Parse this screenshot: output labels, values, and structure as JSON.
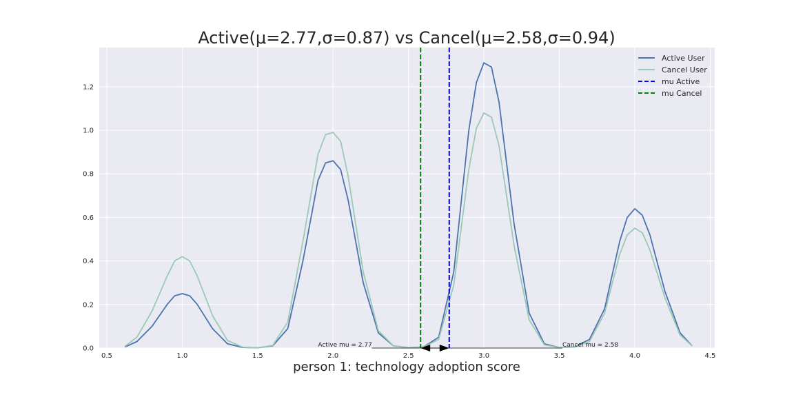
{
  "chart_data": {
    "type": "line",
    "title": "Active(μ=2.77,σ=0.87) vs Cancel(μ=2.58,σ=0.94)",
    "xlabel": "person 1: technology adoption score",
    "ylabel": "",
    "xlim": [
      0.45,
      4.53
    ],
    "ylim": [
      0,
      1.38
    ],
    "xticks": [
      0.5,
      1.0,
      1.5,
      2.0,
      2.5,
      3.0,
      3.5,
      4.0,
      4.5
    ],
    "xtick_labels": [
      "0.5",
      "1.0",
      "1.5",
      "2.0",
      "2.5",
      "3.0",
      "3.5",
      "4.0",
      "4.5"
    ],
    "yticks": [
      0.0,
      0.2,
      0.4,
      0.6,
      0.8,
      1.0,
      1.2
    ],
    "ytick_labels": [
      "0.0",
      "0.2",
      "0.4",
      "0.6",
      "0.8",
      "1.0",
      "1.2"
    ],
    "grid": true,
    "legend_position": "top-right",
    "series": [
      {
        "name": "Active User",
        "color": "#4c72b0",
        "x": [
          0.62,
          0.7,
          0.8,
          0.9,
          0.95,
          1.0,
          1.05,
          1.1,
          1.2,
          1.3,
          1.4,
          1.5,
          1.6,
          1.7,
          1.8,
          1.9,
          1.95,
          2.0,
          2.05,
          2.1,
          2.2,
          2.3,
          2.4,
          2.5,
          2.6,
          2.7,
          2.8,
          2.9,
          2.95,
          3.0,
          3.05,
          3.1,
          3.2,
          3.3,
          3.4,
          3.5,
          3.6,
          3.7,
          3.8,
          3.9,
          3.95,
          4.0,
          4.05,
          4.1,
          4.2,
          4.3,
          4.38
        ],
        "y": [
          0.005,
          0.03,
          0.1,
          0.2,
          0.24,
          0.25,
          0.24,
          0.2,
          0.09,
          0.02,
          0.003,
          0.001,
          0.01,
          0.09,
          0.4,
          0.77,
          0.85,
          0.86,
          0.82,
          0.68,
          0.3,
          0.07,
          0.01,
          0.002,
          0.005,
          0.05,
          0.35,
          1.0,
          1.22,
          1.31,
          1.29,
          1.13,
          0.57,
          0.16,
          0.02,
          0.002,
          0.005,
          0.04,
          0.18,
          0.49,
          0.6,
          0.64,
          0.61,
          0.52,
          0.26,
          0.07,
          0.01
        ]
      },
      {
        "name": "Cancel User",
        "color": "#9ac9b4",
        "x": [
          0.62,
          0.7,
          0.8,
          0.9,
          0.95,
          1.0,
          1.05,
          1.1,
          1.2,
          1.3,
          1.4,
          1.5,
          1.6,
          1.7,
          1.8,
          1.9,
          1.95,
          2.0,
          2.05,
          2.1,
          2.2,
          2.3,
          2.4,
          2.5,
          2.6,
          2.7,
          2.8,
          2.9,
          2.95,
          3.0,
          3.05,
          3.1,
          3.2,
          3.3,
          3.4,
          3.5,
          3.6,
          3.7,
          3.8,
          3.9,
          3.95,
          4.0,
          4.05,
          4.1,
          4.2,
          4.3,
          4.38
        ],
        "y": [
          0.008,
          0.05,
          0.17,
          0.33,
          0.4,
          0.42,
          0.4,
          0.33,
          0.15,
          0.035,
          0.004,
          0.001,
          0.012,
          0.12,
          0.49,
          0.89,
          0.98,
          0.99,
          0.95,
          0.79,
          0.35,
          0.08,
          0.01,
          0.002,
          0.004,
          0.04,
          0.29,
          0.82,
          1.01,
          1.08,
          1.06,
          0.93,
          0.47,
          0.13,
          0.015,
          0.002,
          0.004,
          0.03,
          0.16,
          0.43,
          0.52,
          0.55,
          0.53,
          0.45,
          0.23,
          0.06,
          0.01
        ]
      },
      {
        "name": "mu Active",
        "color": "#0000ff",
        "style": "dashed",
        "vline": 2.77
      },
      {
        "name": "mu Cancel",
        "color": "#008000",
        "style": "dashed",
        "vline": 2.58
      }
    ],
    "annotations": [
      {
        "text": "Active mu = 2.77",
        "x": 1.9,
        "y": 0.0,
        "arrow_to": [
          2.77,
          0.0
        ]
      },
      {
        "text": "Cancel mu = 2.58",
        "x": 3.52,
        "y": 0.0,
        "arrow_to": [
          2.58,
          0.0
        ]
      }
    ]
  }
}
